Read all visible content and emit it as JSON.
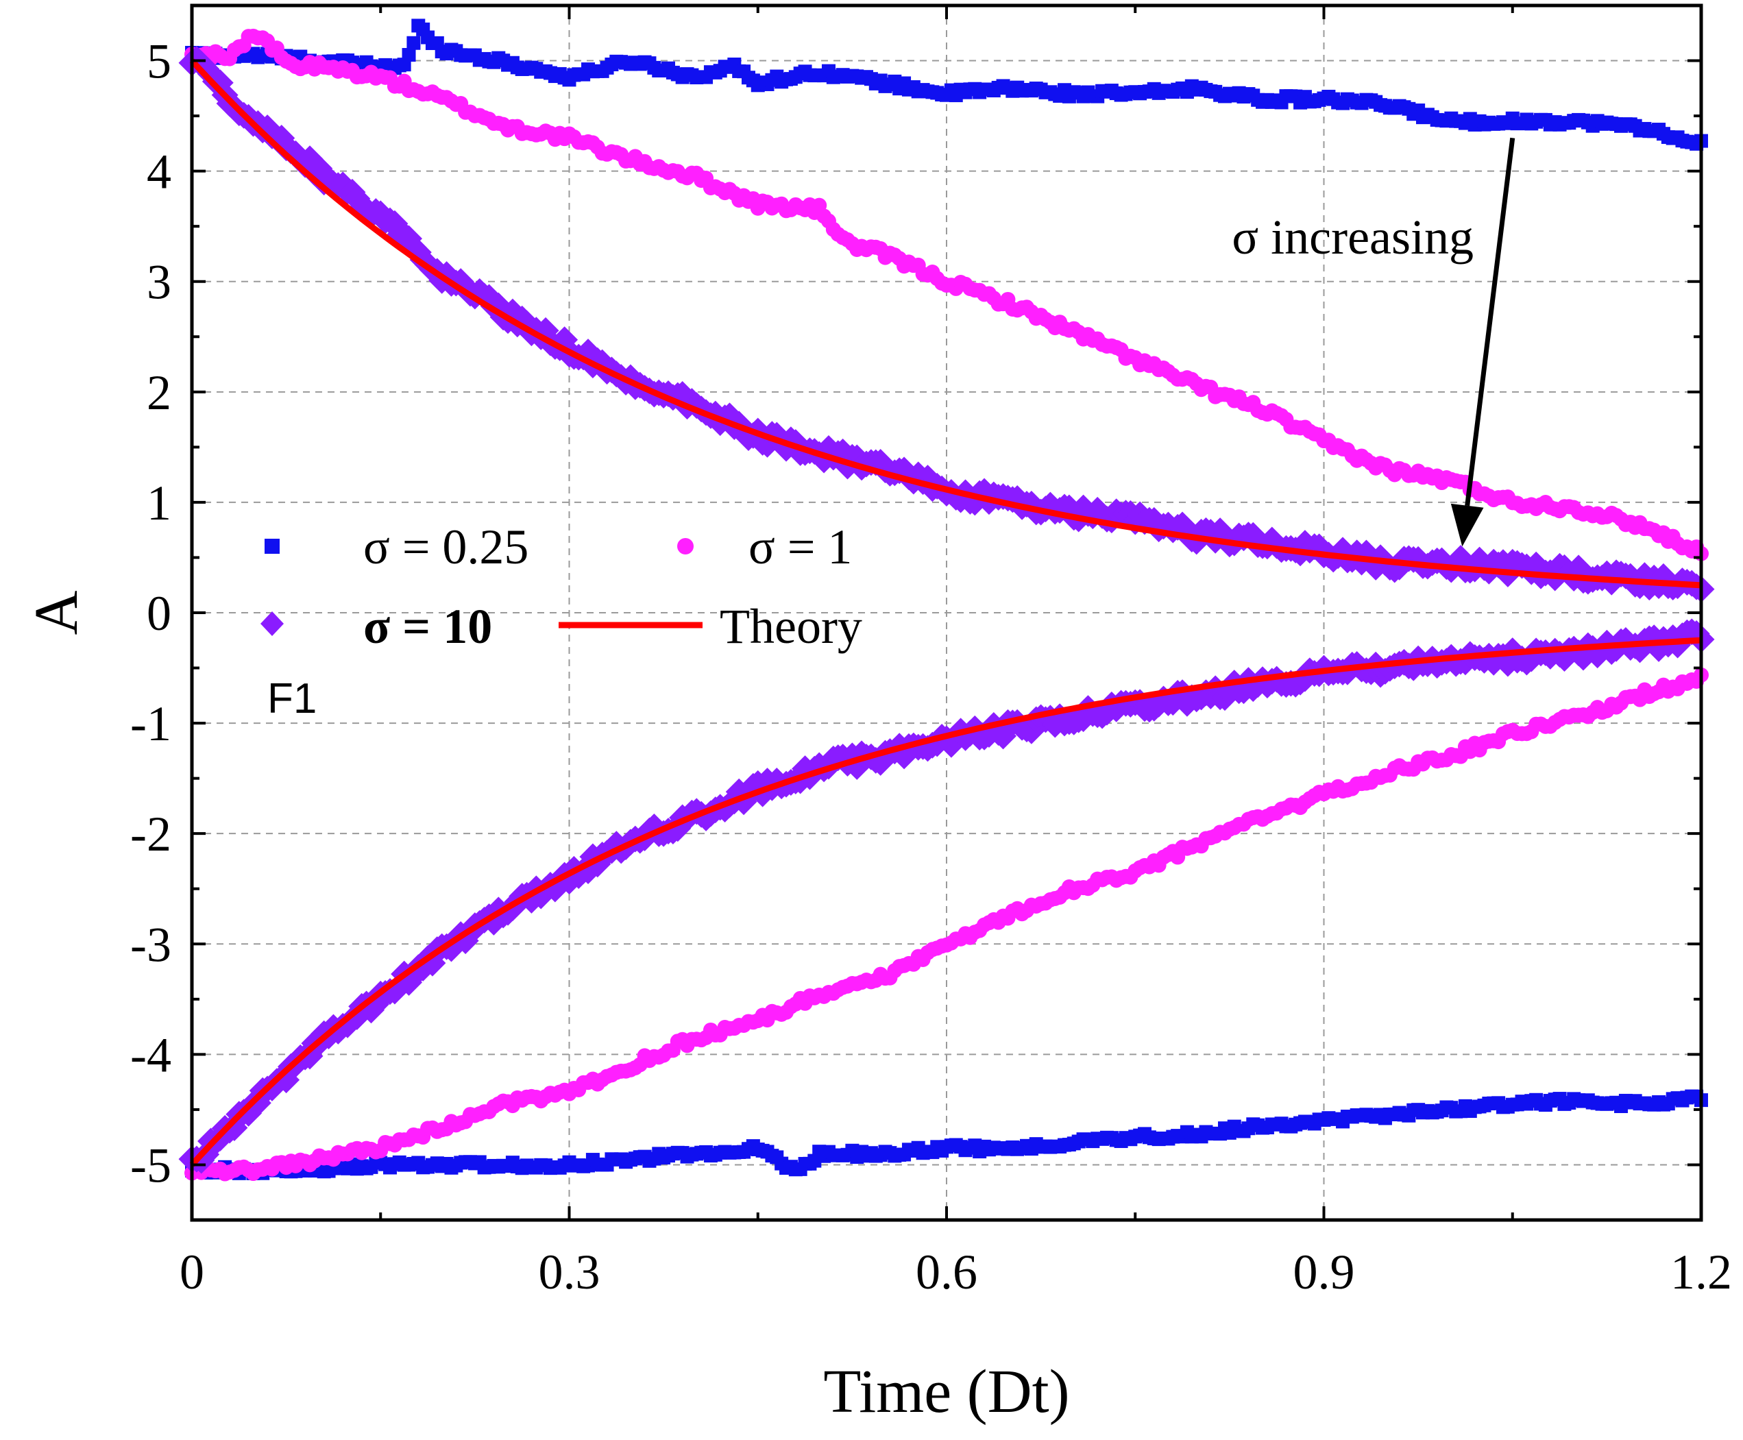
{
  "chart_data": {
    "type": "scatter",
    "title": "",
    "xlabel": "Time (Dt)",
    "ylabel": "A",
    "xlim": [
      0,
      1.2
    ],
    "ylim": [
      -5.5,
      5.5
    ],
    "xticks": [
      0,
      0.3,
      0.6,
      0.9,
      1.2
    ],
    "xtick_labels": [
      "0",
      "0.3",
      "0.6",
      "0.9",
      "1.2"
    ],
    "yticks": [
      -5,
      -4,
      -3,
      -2,
      -1,
      0,
      1,
      2,
      3,
      4,
      5
    ],
    "ytick_labels": [
      "-5",
      "-4",
      "-3",
      "-2",
      "-1",
      "0",
      "1",
      "2",
      "3",
      "4",
      "5"
    ],
    "grid": true,
    "legend_position": "center-left",
    "panel_label": "F1",
    "annotation": {
      "text": "σ increasing",
      "arrow_from": [
        1.05,
        4.3
      ],
      "arrow_to": [
        1.01,
        0.6
      ]
    },
    "series": [
      {
        "name": "σ = 0.25",
        "legend_label": "σ = 0.25",
        "marker": "square",
        "color": "#1010f0",
        "upper": {
          "x": [
            0,
            0.05,
            0.1,
            0.15,
            0.17,
            0.18,
            0.2,
            0.25,
            0.3,
            0.35,
            0.4,
            0.43,
            0.45,
            0.5,
            0.55,
            0.6,
            0.65,
            0.7,
            0.75,
            0.8,
            0.85,
            0.9,
            0.95,
            1.0,
            1.05,
            1.1,
            1.15,
            1.2
          ],
          "y": [
            5.05,
            5.05,
            5.0,
            4.95,
            4.95,
            5.3,
            5.1,
            4.98,
            4.85,
            5.0,
            4.85,
            4.95,
            4.8,
            4.9,
            4.8,
            4.7,
            4.75,
            4.7,
            4.7,
            4.75,
            4.65,
            4.65,
            4.6,
            4.45,
            4.45,
            4.45,
            4.4,
            4.25
          ]
        },
        "lower": {
          "x": [
            0,
            0.05,
            0.1,
            0.15,
            0.2,
            0.25,
            0.3,
            0.35,
            0.4,
            0.45,
            0.48,
            0.5,
            0.55,
            0.6,
            0.65,
            0.7,
            0.75,
            0.8,
            0.85,
            0.9,
            0.95,
            1.0,
            1.05,
            1.1,
            1.15,
            1.2
          ],
          "y": [
            -5.05,
            -5.05,
            -5.05,
            -5.0,
            -5.0,
            -5.0,
            -5.0,
            -4.95,
            -4.9,
            -4.85,
            -5.05,
            -4.9,
            -4.9,
            -4.85,
            -4.85,
            -4.8,
            -4.75,
            -4.72,
            -4.65,
            -4.6,
            -4.55,
            -4.5,
            -4.45,
            -4.42,
            -4.45,
            -4.4
          ]
        }
      },
      {
        "name": "σ = 1",
        "legend_label": "σ = 1",
        "marker": "circle",
        "color": "#ff20ff",
        "upper": {
          "x": [
            0,
            0.03,
            0.05,
            0.08,
            0.1,
            0.15,
            0.2,
            0.25,
            0.3,
            0.35,
            0.4,
            0.45,
            0.5,
            0.52,
            0.55,
            0.6,
            0.65,
            0.7,
            0.75,
            0.8,
            0.85,
            0.9,
            0.95,
            1.0,
            1.05,
            1.1,
            1.15,
            1.2
          ],
          "y": [
            5.05,
            5.05,
            5.25,
            4.95,
            4.95,
            4.85,
            4.65,
            4.4,
            4.3,
            4.1,
            3.95,
            3.7,
            3.65,
            3.35,
            3.25,
            3.0,
            2.8,
            2.55,
            2.3,
            2.05,
            1.85,
            1.55,
            1.3,
            1.2,
            1.0,
            0.95,
            0.8,
            0.55
          ]
        },
        "lower": {
          "x": [
            0,
            0.05,
            0.1,
            0.15,
            0.2,
            0.25,
            0.3,
            0.35,
            0.4,
            0.45,
            0.5,
            0.55,
            0.6,
            0.65,
            0.7,
            0.75,
            0.8,
            0.85,
            0.9,
            0.95,
            1.0,
            1.05,
            1.1,
            1.15,
            1.2
          ],
          "y": [
            -5.05,
            -5.05,
            -4.95,
            -4.85,
            -4.65,
            -4.45,
            -4.35,
            -4.1,
            -3.85,
            -3.7,
            -3.45,
            -3.3,
            -3.0,
            -2.75,
            -2.5,
            -2.35,
            -2.1,
            -1.85,
            -1.65,
            -1.45,
            -1.3,
            -1.1,
            -0.95,
            -0.75,
            -0.6
          ]
        }
      },
      {
        "name": "σ = 10",
        "legend_label": "σ = 10",
        "marker": "diamond",
        "color": "#8a1cff",
        "upper": {
          "x": [
            0,
            0.05,
            0.1,
            0.15,
            0.2,
            0.25,
            0.3,
            0.35,
            0.4,
            0.45,
            0.5,
            0.55,
            0.6,
            0.65,
            0.7,
            0.75,
            0.8,
            0.85,
            0.9,
            0.95,
            1.0,
            1.05,
            1.1,
            1.15,
            1.2
          ],
          "y": [
            5.0,
            4.45,
            4.0,
            3.6,
            3.05,
            2.7,
            2.4,
            2.1,
            1.9,
            1.6,
            1.45,
            1.3,
            1.1,
            1.0,
            0.9,
            0.85,
            0.7,
            0.65,
            0.55,
            0.45,
            0.45,
            0.4,
            0.35,
            0.3,
            0.25
          ]
        },
        "lower": {
          "x": [
            0,
            0.05,
            0.1,
            0.15,
            0.2,
            0.25,
            0.3,
            0.35,
            0.4,
            0.45,
            0.5,
            0.55,
            0.6,
            0.65,
            0.7,
            0.75,
            0.8,
            0.85,
            0.9,
            0.95,
            1.0,
            1.05,
            1.1,
            1.15,
            1.2
          ],
          "y": [
            -5.0,
            -4.45,
            -3.9,
            -3.5,
            -3.05,
            -2.7,
            -2.4,
            -2.05,
            -1.85,
            -1.6,
            -1.4,
            -1.3,
            -1.15,
            -1.05,
            -0.95,
            -0.85,
            -0.75,
            -0.65,
            -0.55,
            -0.5,
            -0.45,
            -0.4,
            -0.35,
            -0.3,
            -0.2
          ]
        }
      },
      {
        "name": "Theory",
        "legend_label": "Theory",
        "marker": "line",
        "color": "#ff0000",
        "model": "A = ±5 · exp(-2.5 · t)",
        "amplitude": 5,
        "decay_rate": 2.5
      }
    ]
  }
}
